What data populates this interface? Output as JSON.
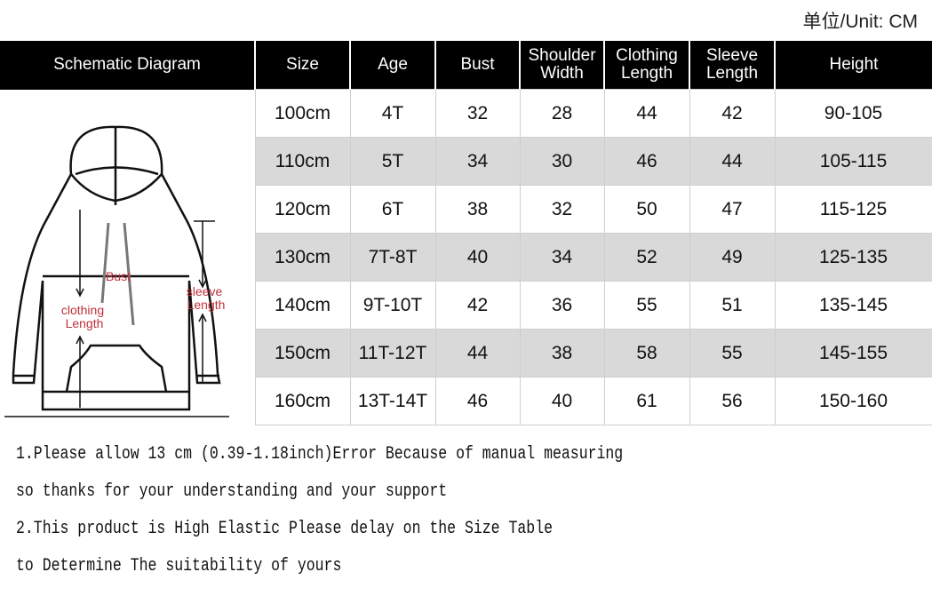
{
  "unit_label": "单位/Unit: CM",
  "headers": [
    "Schematic Diagram",
    "Size",
    "Age",
    "Bust",
    "Shoulder Width",
    "Clothing Length",
    "Sleeve Length",
    "Height"
  ],
  "diagram_labels": {
    "bust": "Bust",
    "clothing_length": "clothing Length",
    "sleeve_length": "sleeve Length"
  },
  "rows": [
    [
      "100cm",
      "4T",
      "32",
      "28",
      "44",
      "42",
      "90-105"
    ],
    [
      "110cm",
      "5T",
      "34",
      "30",
      "46",
      "44",
      "105-115"
    ],
    [
      "120cm",
      "6T",
      "38",
      "32",
      "50",
      "47",
      "115-125"
    ],
    [
      "130cm",
      "7T-8T",
      "40",
      "34",
      "52",
      "49",
      "125-135"
    ],
    [
      "140cm",
      "9T-10T",
      "42",
      "36",
      "55",
      "51",
      "135-145"
    ],
    [
      "150cm",
      "11T-12T",
      "44",
      "38",
      "58",
      "55",
      "145-155"
    ],
    [
      "160cm",
      "13T-14T",
      "46",
      "40",
      "61",
      "56",
      "150-160"
    ]
  ],
  "notes": [
    "1.Please allow 13 cm (0.39-1.18inch)Error Because of manual measuring",
    "so thanks for your understanding and your support",
    "2.This product is High Elastic   Please delay on the Size Table",
    "to Determine The suitability of yours"
  ],
  "colors": {
    "header_bg": "#000000",
    "alt_row": "#d9d9d9",
    "diagram_label": "#c0303a"
  }
}
